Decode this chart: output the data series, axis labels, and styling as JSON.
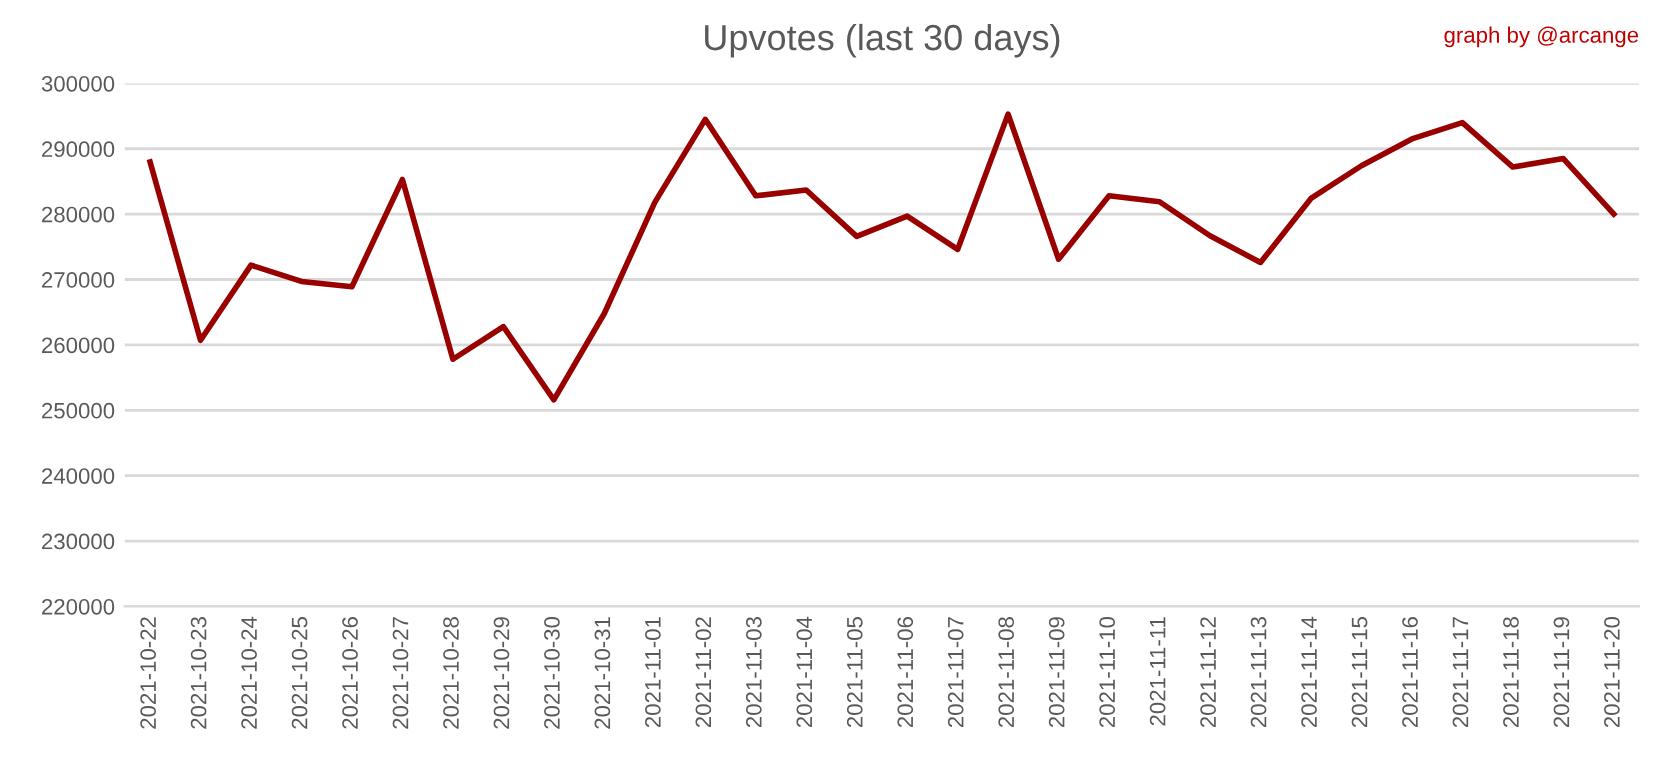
{
  "chart_data": {
    "type": "line",
    "title": "Upvotes (last 30 days)",
    "annotations": [
      "graph by @arcange"
    ],
    "categories": [
      "2021-10-22",
      "2021-10-23",
      "2021-10-24",
      "2021-10-25",
      "2021-10-26",
      "2021-10-27",
      "2021-10-28",
      "2021-10-29",
      "2021-10-30",
      "2021-10-31",
      "2021-11-01",
      "2021-11-02",
      "2021-11-03",
      "2021-11-04",
      "2021-11-05",
      "2021-11-06",
      "2021-11-07",
      "2021-11-08",
      "2021-11-09",
      "2021-11-10",
      "2021-11-11",
      "2021-11-12",
      "2021-11-13",
      "2021-11-14",
      "2021-11-15",
      "2021-11-16",
      "2021-11-17",
      "2021-11-18",
      "2021-11-19",
      "2021-11-20"
    ],
    "series": [
      {
        "color": "#990000",
        "values": [
          288000,
          260700,
          272200,
          269700,
          268900,
          285300,
          257800,
          262800,
          251600,
          264800,
          281800,
          294500,
          282800,
          283700,
          276600,
          279700,
          274600,
          295300,
          273100,
          282800,
          281900,
          276700,
          272600,
          282400,
          287400,
          291500,
          294000,
          287200,
          288500,
          280000
        ]
      }
    ],
    "ylim": [
      220000,
      300000
    ],
    "yticks": [
      220000,
      230000,
      240000,
      250000,
      260000,
      270000,
      280000,
      290000,
      300000
    ],
    "grid": "y",
    "legend": false,
    "marker": "none",
    "line_style": "solid"
  }
}
